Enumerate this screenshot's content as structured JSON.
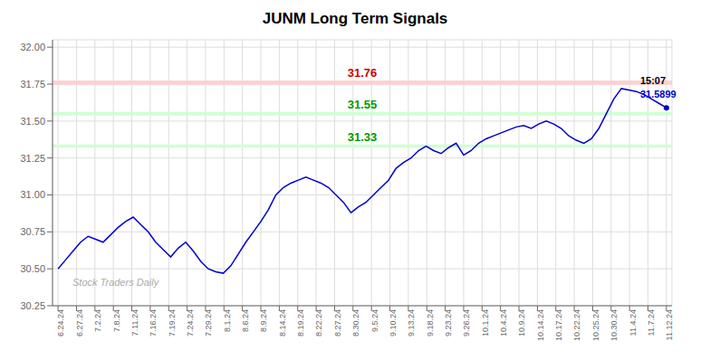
{
  "chart_data": {
    "type": "line",
    "title": "JUNM Long Term Signals",
    "values": [
      30.5,
      30.56,
      30.62,
      30.68,
      30.72,
      30.7,
      30.68,
      30.73,
      30.78,
      30.82,
      30.85,
      30.8,
      30.75,
      30.68,
      30.63,
      30.58,
      30.64,
      30.68,
      30.62,
      30.55,
      30.5,
      30.48,
      30.47,
      30.52,
      30.6,
      30.68,
      30.75,
      30.82,
      30.9,
      31.0,
      31.05,
      31.08,
      31.1,
      31.12,
      31.1,
      31.08,
      31.05,
      31.0,
      30.95,
      30.88,
      30.92,
      30.95,
      31.0,
      31.05,
      31.1,
      31.18,
      31.22,
      31.25,
      31.3,
      31.33,
      31.3,
      31.28,
      31.32,
      31.35,
      31.27,
      31.3,
      31.35,
      31.38,
      31.4,
      31.42,
      31.44,
      31.46,
      31.47,
      31.45,
      31.48,
      31.5,
      31.48,
      31.45,
      31.4,
      31.37,
      31.35,
      31.38,
      31.45,
      31.55,
      31.65,
      31.72,
      31.71,
      31.7,
      31.68,
      31.65,
      31.62,
      31.5899
    ],
    "color": "#0000cc",
    "xlim": [
      -0.3,
      33.3
    ],
    "xticks": [
      {
        "value": 0,
        "label": "6.24.24"
      },
      {
        "value": 1,
        "label": "6.27.24"
      },
      {
        "value": 2,
        "label": "7.2.24"
      },
      {
        "value": 3,
        "label": "7.8.24"
      },
      {
        "value": 4,
        "label": "7.11.24"
      },
      {
        "value": 5,
        "label": "7.16.24"
      },
      {
        "value": 6,
        "label": "7.19.24"
      },
      {
        "value": 7,
        "label": "7.24.24"
      },
      {
        "value": 8,
        "label": "7.29.24"
      },
      {
        "value": 9,
        "label": "8.1.24"
      },
      {
        "value": 10,
        "label": "8.6.24"
      },
      {
        "value": 11,
        "label": "8.9.24"
      },
      {
        "value": 12,
        "label": "8.14.24"
      },
      {
        "value": 13,
        "label": "8.19.24"
      },
      {
        "value": 14,
        "label": "8.22.24"
      },
      {
        "value": 15,
        "label": "8.27.24"
      },
      {
        "value": 16,
        "label": "8.30.24"
      },
      {
        "value": 17,
        "label": "9.5.24"
      },
      {
        "value": 18,
        "label": "9.10.24"
      },
      {
        "value": 19,
        "label": "9.13.24"
      },
      {
        "value": 20,
        "label": "9.18.24"
      },
      {
        "value": 21,
        "label": "9.23.24"
      },
      {
        "value": 22,
        "label": "9.26.24"
      },
      {
        "value": 23,
        "label": "10.1.24"
      },
      {
        "value": 24,
        "label": "10.4.24"
      },
      {
        "value": 25,
        "label": "10.9.24"
      },
      {
        "value": 26,
        "label": "10.14.24"
      },
      {
        "value": 27,
        "label": "10.17.24"
      },
      {
        "value": 28,
        "label": "10.22.24"
      },
      {
        "value": 29,
        "label": "10.25.24"
      },
      {
        "value": 30,
        "label": "10.30.24"
      },
      {
        "value": 31,
        "label": "11.4.24"
      },
      {
        "value": 32,
        "label": "11.7.24"
      },
      {
        "value": 33,
        "label": "11.12.24"
      }
    ],
    "ylim": [
      30.25,
      32.05
    ],
    "yticks": [
      30.25,
      {
        "value": 30.5,
        "label": "30.50"
      },
      30.75,
      {
        "value": 31,
        "label": "31.00"
      },
      31.25,
      {
        "value": 31.5,
        "label": "31.50"
      },
      31.75,
      {
        "value": 32,
        "label": "32.00"
      }
    ],
    "grid": true,
    "bands": [
      {
        "value": 31.76,
        "label": "31.76",
        "color": "#ffcccc",
        "text_color": "#cc0000"
      },
      {
        "value": 31.55,
        "label": "31.55",
        "color": "#ccffcc",
        "text_color": "#009900"
      },
      {
        "value": 31.33,
        "label": "31.33",
        "color": "#ccffcc",
        "text_color": "#009900"
      }
    ],
    "annotations": [
      {
        "text": "15:07",
        "color": "#000000"
      },
      {
        "text": "31.5899",
        "color": "#0000cc"
      }
    ],
    "watermark": "Stock Traders Daily"
  }
}
